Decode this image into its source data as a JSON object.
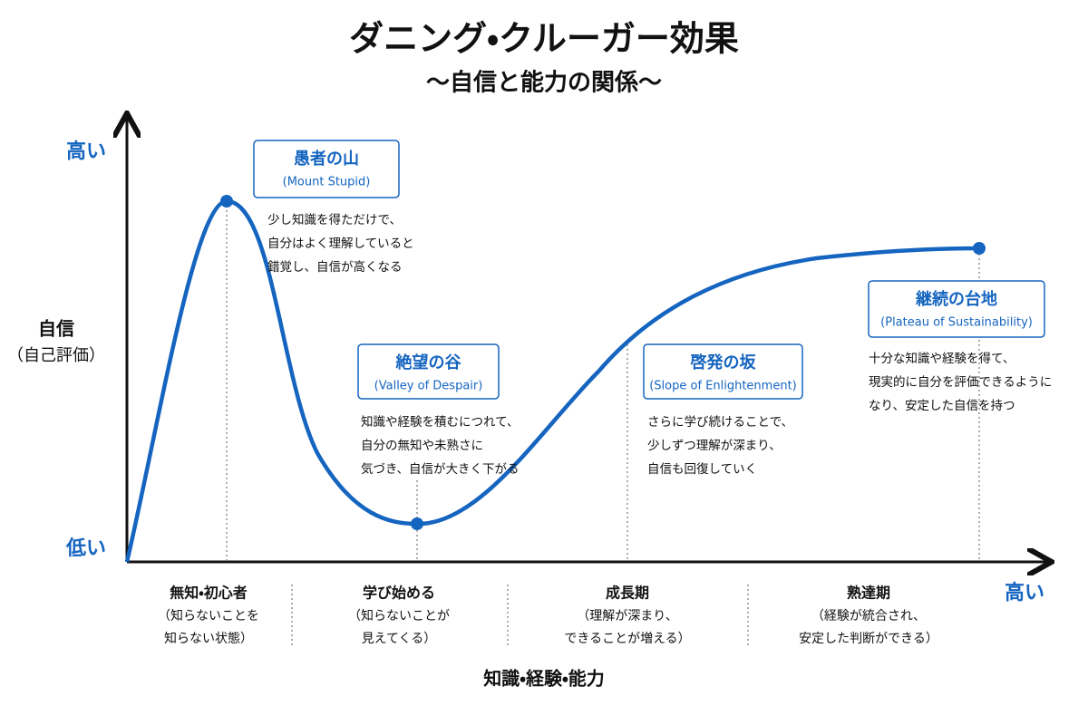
{
  "header": {
    "title": "ダニング・クルーガー効果",
    "subtitle": "〜自信と能力の関係〜"
  },
  "y_axis": {
    "label": [
      "自信",
      "（自己評価）"
    ],
    "high": "高い",
    "low": "低い"
  },
  "x_axis": {
    "label": "知識・経験・能力",
    "high": "高い"
  },
  "annotations": [
    {
      "title": "愚者の山",
      "subtitle": "(Mount Stupid)",
      "description": [
        "少し知識を得ただけで、",
        "自分はよく理解していると",
        "錯覚し、自信が高くなる"
      ]
    },
    {
      "title": "絶望の谷",
      "subtitle": "(Valley of Despair)",
      "description": [
        "知識や経験を積むにつれて、",
        "自分の無知や未熟さに",
        "気づき、自信が大きく下がる"
      ]
    },
    {
      "title": "啓発の坂",
      "subtitle": "(Slope of Enlightenment)",
      "description": [
        "さらに学び続けることで、",
        "少しずつ理解が深まり、",
        "自信も回復していく"
      ]
    },
    {
      "title": "継続の台地",
      "subtitle": "(Plateau of Sustainability)",
      "description": [
        "十分な知識や経験を得て、",
        "現実的に自分を評価できるように",
        "なり、安定した自信を持つ"
      ]
    }
  ],
  "stages": [
    {
      "name": "無知・初心者",
      "description": [
        "（知らないことを",
        "知らない状態）"
      ]
    },
    {
      "name": "学び始める",
      "description": [
        "（知らないことが",
        "見えてくる）"
      ]
    },
    {
      "name": "成長期",
      "description": [
        "（理解が深まり、",
        "できることが増える）"
      ]
    },
    {
      "name": "熟達期",
      "description": [
        "（経験が統合され、",
        "安定した判断ができる）"
      ]
    }
  ]
}
